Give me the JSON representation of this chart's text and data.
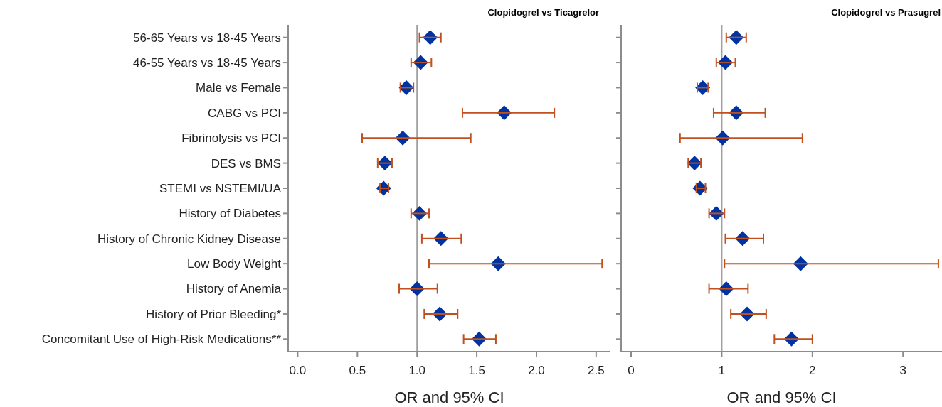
{
  "chart_data": [
    {
      "type": "scatter",
      "orientation": "horizontal",
      "title": "Clopidogrel vs Ticagrelor",
      "xlabel": "OR and 95% CI",
      "categories": [
        "56-65 Years vs 18-45 Years",
        "46-55 Years vs 18-45 Years",
        "Male vs Female",
        "CABG vs PCI",
        "Fibrinolysis vs PCI",
        "DES vs BMS",
        "STEMI vs NSTEMI/UA",
        "History of Diabetes",
        "History of Chronic Kidney Disease",
        "Low Body Weight",
        "History of Anemia",
        "History of Prior Bleeding*",
        "Concomitant Use of High-Risk Medications**"
      ],
      "values": [
        1.11,
        1.03,
        0.91,
        1.73,
        0.88,
        0.73,
        0.72,
        1.02,
        1.2,
        1.68,
        1.0,
        1.19,
        1.52
      ],
      "errors": [
        [
          1.02,
          1.2
        ],
        [
          0.95,
          1.12
        ],
        [
          0.86,
          0.97
        ],
        [
          1.38,
          2.15
        ],
        [
          0.54,
          1.45
        ],
        [
          0.67,
          0.79
        ],
        [
          0.69,
          0.76
        ],
        [
          0.95,
          1.1
        ],
        [
          1.04,
          1.37
        ],
        [
          1.1,
          2.55
        ],
        [
          0.85,
          1.17
        ],
        [
          1.06,
          1.34
        ],
        [
          1.39,
          1.66
        ]
      ],
      "color": "#0033a0",
      "marker": "diamond",
      "xlim": [
        -0.08,
        2.62
      ],
      "xticks": [
        {
          "value": 0,
          "label": "0.0"
        },
        0.5,
        {
          "value": 1,
          "label": "1.0"
        },
        1.5,
        {
          "value": 2,
          "label": "2.0"
        },
        2.5
      ],
      "ref_lines": [
        {
          "axis": "x",
          "value": 1,
          "color": "#a0a0a0"
        }
      ]
    },
    {
      "type": "scatter",
      "orientation": "horizontal",
      "title": "Clopidogrel vs Prasugrel",
      "xlabel": "OR and 95% CI",
      "categories": [
        null,
        null,
        null,
        null,
        null,
        null,
        null,
        null,
        null,
        null,
        null,
        null,
        null
      ],
      "values": [
        1.16,
        1.04,
        0.79,
        1.16,
        1.01,
        0.7,
        0.76,
        0.94,
        1.23,
        1.87,
        1.05,
        1.28,
        1.77
      ],
      "errors": [
        [
          1.05,
          1.27
        ],
        [
          0.94,
          1.15
        ],
        [
          0.73,
          0.85
        ],
        [
          0.91,
          1.48
        ],
        [
          0.54,
          1.89
        ],
        [
          0.63,
          0.77
        ],
        [
          0.72,
          0.82
        ],
        [
          0.86,
          1.03
        ],
        [
          1.04,
          1.46
        ],
        [
          1.03,
          3.39
        ],
        [
          0.86,
          1.29
        ],
        [
          1.1,
          1.49
        ],
        [
          1.58,
          2.0
        ]
      ],
      "color": "#0033a0",
      "marker": "diamond",
      "xlim": [
        -0.11,
        3.43
      ],
      "xticks": [
        0,
        1,
        2,
        3
      ],
      "tick_labels": "x",
      "ref_lines": [
        {
          "axis": "x",
          "value": 1,
          "color": "#a0a0a0"
        }
      ]
    }
  ]
}
